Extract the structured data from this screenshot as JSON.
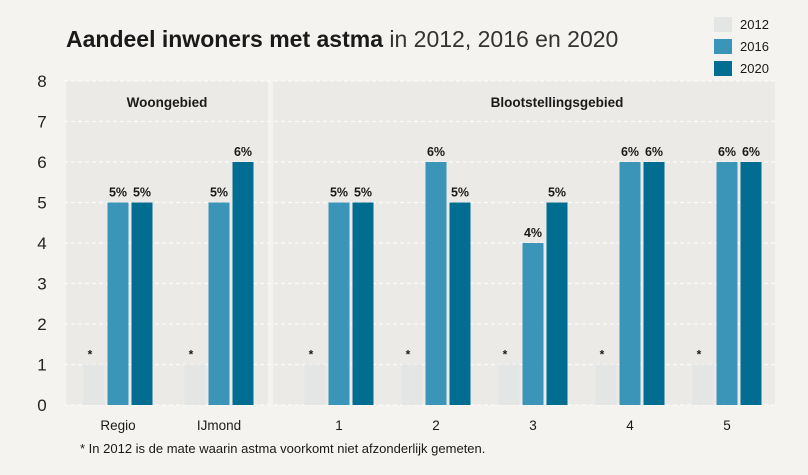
{
  "title_bold": "Aandeel inwoners met astma",
  "title_rest": "in 2012, 2016 en 2020",
  "footnote": "* In 2012 is de mate waarin astma voorkomt niet afzonderlijk gemeten.",
  "colors": {
    "2012": "#e3e6e5",
    "2016": "#3a95b8",
    "2020": "#006d91"
  },
  "chart_data": {
    "type": "bar",
    "title": "Aandeel inwoners met astma in 2012, 2016 en 2020",
    "ylim": [
      0,
      8
    ],
    "yticks": [
      0,
      1,
      2,
      3,
      4,
      5,
      6,
      7,
      8
    ],
    "grid": true,
    "legend_position": "top-right",
    "groups": [
      {
        "label": "Woongebied",
        "categories": [
          "Regio",
          "IJmond"
        ]
      },
      {
        "label": "Blootstellingsgebied",
        "categories": [
          "1",
          "2",
          "3",
          "4",
          "5"
        ]
      }
    ],
    "categories": [
      "Regio",
      "IJmond",
      "1",
      "2",
      "3",
      "4",
      "5"
    ],
    "series": [
      {
        "name": "2012",
        "values": [
          1,
          1,
          1,
          1,
          1,
          1,
          1
        ],
        "labels": [
          "*",
          "*",
          "*",
          "*",
          "*",
          "*",
          "*"
        ]
      },
      {
        "name": "2016",
        "values": [
          5,
          5,
          5,
          6,
          4,
          6,
          6
        ],
        "labels": [
          "5%",
          "5%",
          "5%",
          "6%",
          "4%",
          "6%",
          "6%"
        ]
      },
      {
        "name": "2020",
        "values": [
          5,
          6,
          5,
          5,
          5,
          6,
          6
        ],
        "labels": [
          "5%",
          "6%",
          "5%",
          "5%",
          "5%",
          "6%",
          "6%"
        ]
      }
    ]
  }
}
